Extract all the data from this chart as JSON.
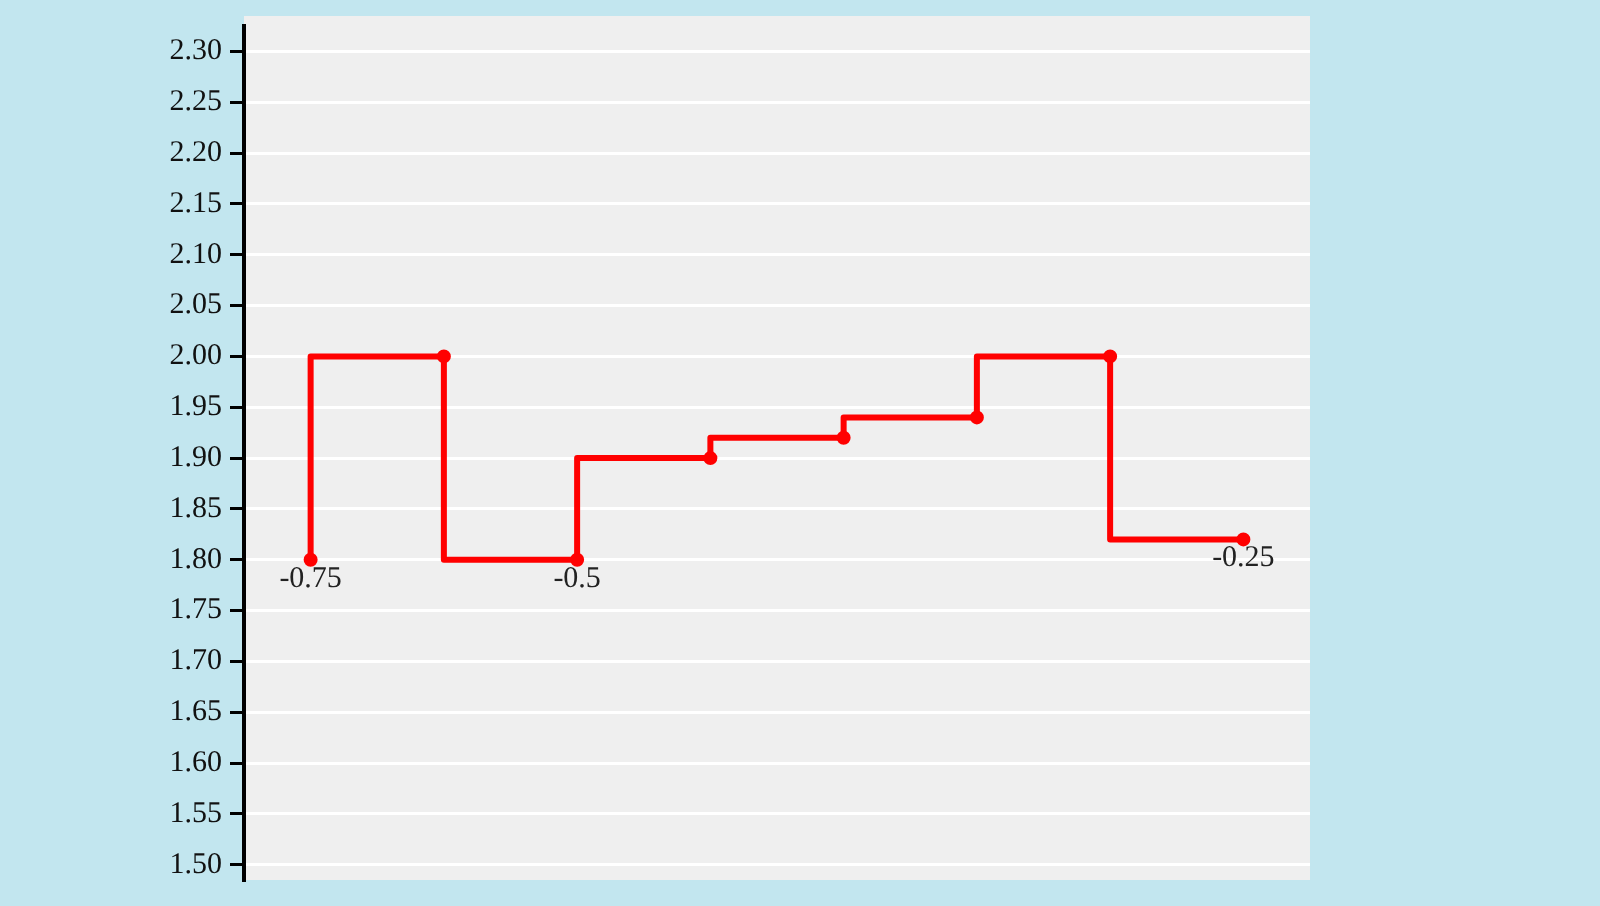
{
  "chart_data": {
    "type": "step",
    "categories": [
      "-0.75",
      null,
      "-0.5",
      null,
      null,
      null,
      null,
      "-0.25"
    ],
    "values": [
      1.8,
      2.0,
      1.8,
      1.9,
      1.92,
      1.94,
      2.0,
      1.82
    ],
    "color": "#ff0000",
    "marker": "circle",
    "grid": "y",
    "ylim": [
      1.485,
      2.325
    ],
    "yticks": [
      {
        "value": 1.5,
        "label": "1.50"
      },
      {
        "value": 1.55,
        "label": "1.55"
      },
      {
        "value": 1.6,
        "label": "1.60"
      },
      {
        "value": 1.65,
        "label": "1.65"
      },
      {
        "value": 1.7,
        "label": "1.70"
      },
      {
        "value": 1.75,
        "label": "1.75"
      },
      {
        "value": 1.8,
        "label": "1.80"
      },
      {
        "value": 1.85,
        "label": "1.85"
      },
      {
        "value": 1.9,
        "label": "1.90"
      },
      {
        "value": 1.95,
        "label": "1.95"
      },
      {
        "value": 2.0,
        "label": "2.00"
      },
      {
        "value": 2.05,
        "label": "2.05"
      },
      {
        "value": 2.1,
        "label": "2.10"
      },
      {
        "value": 2.15,
        "label": "2.15"
      },
      {
        "value": 2.2,
        "label": "2.20"
      },
      {
        "value": 2.25,
        "label": "2.25"
      },
      {
        "value": 2.3,
        "label": "2.30"
      }
    ]
  }
}
